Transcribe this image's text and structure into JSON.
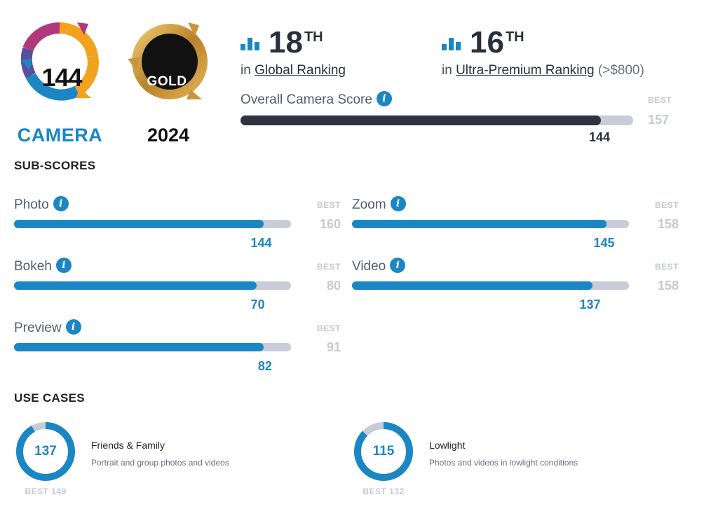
{
  "badges": {
    "camera": {
      "score": "144",
      "label": "CAMERA"
    },
    "gold": {
      "label": "GOLD",
      "year": "2024"
    }
  },
  "rankings": {
    "global": {
      "position": "18",
      "suffix": "TH",
      "prefix": "in",
      "link": "Global Ranking"
    },
    "ultra": {
      "position": "16",
      "suffix": "TH",
      "prefix": "in",
      "link": "Ultra-Premium Ranking",
      "extra": "(>$800)"
    }
  },
  "overall": {
    "label": "Overall Camera Score",
    "score": 144,
    "best": 157,
    "best_label": "BEST",
    "fill_color": "#2d3340"
  },
  "subscores": {
    "title": "SUB-SCORES",
    "best_label": "BEST",
    "items": [
      {
        "label": "Photo",
        "score": 144,
        "best": 160
      },
      {
        "label": "Zoom",
        "score": 145,
        "best": 158
      },
      {
        "label": "Bokeh",
        "score": 70,
        "best": 80
      },
      {
        "label": "Video",
        "score": 137,
        "best": 158
      },
      {
        "label": "Preview",
        "score": 82,
        "best": 91
      }
    ]
  },
  "use_cases": {
    "title": "USE CASES",
    "items": [
      {
        "score": 137,
        "best": 149,
        "best_text": "BEST 149",
        "title": "Friends & Family",
        "desc": "Portrait and group photos and videos"
      },
      {
        "score": 115,
        "best": 132,
        "best_text": "BEST 132",
        "title": "Lowlight",
        "desc": "Photos and videos in lowlight conditions"
      }
    ]
  },
  "colors": {
    "accent": "#1a87c4",
    "track": "#c9ccd8",
    "muted": "#c6c9d2"
  },
  "icons": {
    "info": "i"
  }
}
